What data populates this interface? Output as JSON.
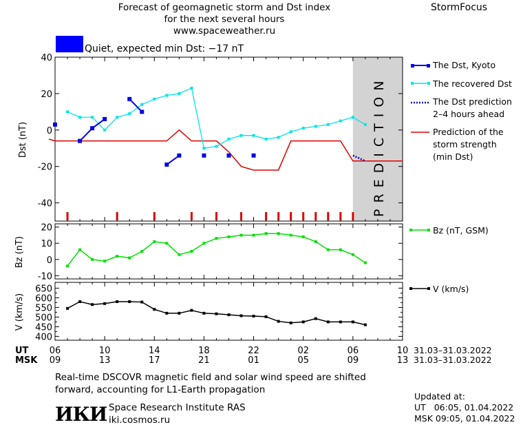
{
  "header": {
    "title_line1": "Forecast of geomagnetic storm and Dst index",
    "title_line2": "for the next several hours",
    "website": "www.spaceweather.ru",
    "brand": "StormFocus"
  },
  "status": {
    "label": "Quiet, expected min Dst: −17 nT",
    "color": "#0000ff"
  },
  "prediction_zone_label": "PREDICTION",
  "time_axis": {
    "ut_label": "UT",
    "msk_label": "MSK",
    "ut_ticks": [
      "06",
      "10",
      "14",
      "18",
      "22",
      "02",
      "06",
      "10"
    ],
    "msk_ticks": [
      "09",
      "13",
      "17",
      "21",
      "01",
      "05",
      "09",
      "13"
    ],
    "ut_range": "31.03–31.03.2022",
    "msk_range": "31.03–31.03.2022"
  },
  "footer": {
    "note_line1": "Real-time DSCOVR magnetic field and solar wind speed are shifted",
    "note_line2": "forward, accounting for L1-Earth propagation",
    "institute": "Space Research Institute RAS",
    "institute_site": "iki.cosmos.ru",
    "logo_text": "ИКИ",
    "updated_label": "Updated at:",
    "updated_ut_label": "UT",
    "updated_ut": "06:05, 01.04.2022",
    "updated_msk_label": "MSK",
    "updated_msk": "09:05, 01.04.2022"
  },
  "colors": {
    "dst_kyoto": "#0000e6",
    "recovered_dst": "#00e5e5",
    "dst_prediction": "#0000cc",
    "storm_strength": "#dd0000",
    "bz": "#00e000",
    "velocity": "#000000",
    "prediction_shade": "#d3d3d3"
  },
  "chart_data": [
    {
      "type": "line",
      "panel": "dst",
      "ylabel": "Dst (nT)",
      "ylim": [
        -50,
        40
      ],
      "yticks": [
        40,
        20,
        0,
        -20,
        -40
      ],
      "xlim_hours_ut": [
        6,
        34
      ],
      "prediction_from_hour": 30,
      "series": [
        {
          "name": "The Dst, Kyoto",
          "segments": [
            [
              [
                6,
                3
              ]
            ],
            [
              [
                8,
                -6
              ],
              [
                9,
                1
              ],
              [
                10,
                6
              ]
            ],
            [
              [
                12,
                17
              ],
              [
                13,
                10
              ]
            ],
            [
              [
                15,
                -19
              ],
              [
                16,
                -14
              ]
            ],
            [
              [
                18,
                -14
              ]
            ],
            [
              [
                20,
                -14
              ]
            ],
            [
              [
                22,
                -14
              ]
            ]
          ]
        },
        {
          "name": "The recovered Dst",
          "x": [
            7,
            8,
            9,
            10,
            11,
            12,
            13,
            14,
            15,
            16,
            17,
            18,
            19,
            20,
            21,
            22,
            23,
            24,
            25,
            26,
            27,
            28,
            29,
            30,
            31
          ],
          "y": [
            10,
            7,
            7,
            0,
            7,
            9,
            14,
            17,
            19,
            20,
            23,
            -10,
            -9,
            -5,
            -3,
            -3,
            -5,
            -4,
            -1,
            1,
            2,
            3,
            5,
            7,
            3
          ]
        },
        {
          "name": "The Dst prediction 2–4 hours ahead",
          "x": [
            30,
            31
          ],
          "y": [
            -14,
            -17
          ]
        },
        {
          "name": "Prediction of the storm strength (min Dst)",
          "x": [
            5.5,
            6,
            7,
            14,
            15,
            16,
            17,
            19,
            20,
            21,
            22,
            24,
            25,
            29,
            30,
            34
          ],
          "y": [
            -5,
            -6,
            -6,
            -6,
            -6,
            0,
            -6,
            -6,
            -12,
            -20,
            -22,
            -22,
            -6,
            -6,
            -17,
            -17
          ]
        }
      ],
      "event_ticks_hours_ut": [
        7,
        11,
        14,
        17,
        19,
        21,
        23,
        24,
        25,
        26,
        27,
        28,
        29,
        30
      ]
    },
    {
      "type": "line",
      "panel": "bz",
      "ylabel": "Bz (nT)",
      "ylim": [
        -12,
        22
      ],
      "yticks": [
        20,
        10,
        0,
        -10
      ],
      "series": [
        {
          "name": "Bz (nT, GSM)",
          "x": [
            7,
            8,
            9,
            10,
            11,
            12,
            13,
            14,
            15,
            16,
            17,
            18,
            19,
            20,
            21,
            22,
            23,
            24,
            25,
            26,
            27,
            28,
            29,
            30,
            31
          ],
          "y": [
            -4,
            6,
            0,
            -1,
            2,
            1,
            5,
            11,
            10,
            3,
            5,
            10,
            13,
            14,
            15,
            15,
            16,
            16,
            15,
            14,
            11,
            6,
            6,
            3,
            -2
          ]
        }
      ]
    },
    {
      "type": "line",
      "panel": "velocity",
      "ylabel": "V (km/s)",
      "ylim": [
        380,
        680
      ],
      "yticks": [
        650,
        600,
        550,
        500,
        450,
        400
      ],
      "minor_yticks": [
        625,
        575,
        525,
        475,
        425
      ],
      "series": [
        {
          "name": "V (km/s)",
          "x": [
            7,
            8,
            9,
            10,
            11,
            12,
            13,
            14,
            15,
            16,
            17,
            18,
            19,
            20,
            21,
            22,
            23,
            24,
            25,
            26,
            27,
            28,
            29,
            30,
            31
          ],
          "y": [
            545,
            580,
            565,
            570,
            580,
            580,
            578,
            540,
            520,
            520,
            535,
            520,
            517,
            512,
            507,
            505,
            502,
            478,
            470,
            475,
            492,
            475,
            475,
            475,
            460
          ]
        }
      ]
    }
  ]
}
